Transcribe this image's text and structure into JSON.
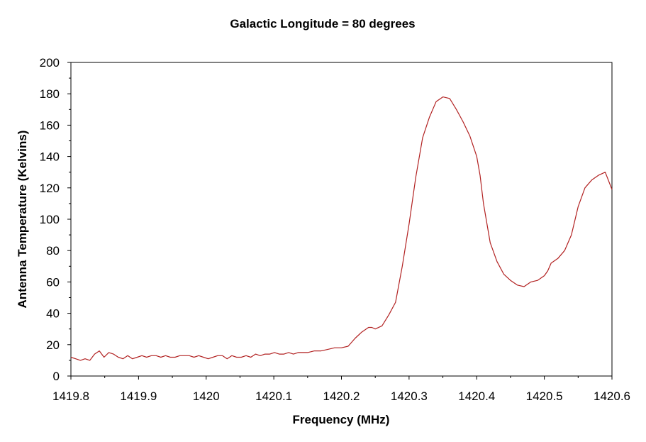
{
  "chart_data": {
    "type": "line",
    "title": "Galactic Longitude = 80 degrees",
    "xlabel": "Frequency (MHz)",
    "ylabel": "Antenna Temperature (Kelvins)",
    "xlim": [
      1419.8,
      1420.6
    ],
    "ylim": [
      0,
      200
    ],
    "x_ticks": [
      "1419.8",
      "1419.9",
      "1420",
      "1420.1",
      "1420.2",
      "1420.3",
      "1420.4",
      "1420.5",
      "1420.6"
    ],
    "y_ticks": [
      "0",
      "20",
      "40",
      "60",
      "80",
      "100",
      "120",
      "140",
      "160",
      "180",
      "200"
    ],
    "grid": false,
    "legend": "none",
    "line_color": "#b22222",
    "series": [
      {
        "x": [
          1419.8,
          1419.807,
          1419.814,
          1419.821,
          1419.828,
          1419.835,
          1419.842,
          1419.849,
          1419.856,
          1419.863,
          1419.87,
          1419.877,
          1419.884,
          1419.891,
          1419.898,
          1419.905,
          1419.912,
          1419.919,
          1419.926,
          1419.933,
          1419.94,
          1419.947,
          1419.954,
          1419.961,
          1419.968,
          1419.975,
          1419.982,
          1419.989,
          1419.996,
          1420.003,
          1420.01,
          1420.017,
          1420.024,
          1420.031,
          1420.038,
          1420.045,
          1420.052,
          1420.059,
          1420.066,
          1420.073,
          1420.08,
          1420.087,
          1420.094,
          1420.101,
          1420.108,
          1420.115,
          1420.122,
          1420.129,
          1420.136,
          1420.143,
          1420.15,
          1420.16,
          1420.17,
          1420.18,
          1420.19,
          1420.2,
          1420.21,
          1420.22,
          1420.23,
          1420.24,
          1420.245,
          1420.25,
          1420.26,
          1420.27,
          1420.28,
          1420.29,
          1420.3,
          1420.31,
          1420.32,
          1420.33,
          1420.34,
          1420.35,
          1420.36,
          1420.37,
          1420.375,
          1420.38,
          1420.39,
          1420.4,
          1420.405,
          1420.41,
          1420.42,
          1420.43,
          1420.44,
          1420.45,
          1420.46,
          1420.47,
          1420.48,
          1420.49,
          1420.5,
          1420.505,
          1420.51,
          1420.52,
          1420.53,
          1420.54,
          1420.55,
          1420.56,
          1420.57,
          1420.58,
          1420.59,
          1420.6
        ],
        "y": [
          12,
          11,
          10,
          11,
          10,
          14,
          16,
          12,
          15,
          14,
          12,
          11,
          13,
          11,
          12,
          13,
          12,
          13,
          13,
          12,
          13,
          12,
          12,
          13,
          13,
          13,
          12,
          13,
          12,
          11,
          12,
          13,
          13,
          11,
          13,
          12,
          12,
          13,
          12,
          14,
          13,
          14,
          14,
          15,
          14,
          14,
          15,
          14,
          15,
          15,
          15,
          16,
          16,
          17,
          18,
          18,
          19,
          24,
          28,
          31,
          31,
          30,
          32,
          39,
          47,
          70,
          97,
          127,
          152,
          165,
          175,
          178,
          177,
          170,
          166,
          162,
          153,
          140,
          128,
          110,
          85,
          73,
          65,
          61,
          58,
          57,
          60,
          61,
          64,
          67,
          72,
          75,
          80,
          90,
          108,
          120,
          125,
          128,
          130,
          119
        ]
      }
    ]
  }
}
